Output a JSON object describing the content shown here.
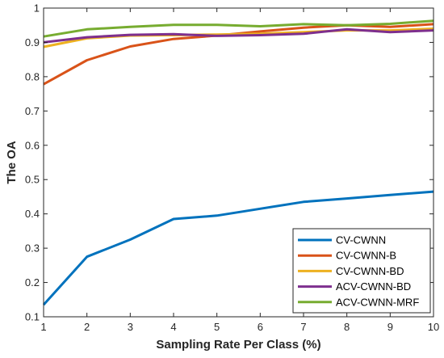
{
  "chart_data": {
    "type": "line",
    "title": "",
    "xlabel": "Sampling Rate Per Class (%)",
    "ylabel": "The OA",
    "x": [
      1,
      2,
      3,
      4,
      5,
      6,
      7,
      8,
      9,
      10
    ],
    "xlim": [
      1,
      10
    ],
    "ylim": [
      0.1,
      1
    ],
    "xticks": [
      1,
      2,
      3,
      4,
      5,
      6,
      7,
      8,
      9,
      10
    ],
    "yticks": [
      0.1,
      0.2,
      0.3,
      0.4,
      0.5,
      0.6,
      0.7,
      0.8,
      0.9,
      1
    ],
    "ytick_labels": [
      "0.1",
      "0.2",
      "0.3",
      "0.4",
      "0.5",
      "0.6",
      "0.7",
      "0.8",
      "0.9",
      "1"
    ],
    "grid": false,
    "legend_position": "bottom-right",
    "series": [
      {
        "name": "CV-CWNN",
        "color": "#0072BD",
        "values": [
          0.135,
          0.275,
          0.325,
          0.385,
          0.395,
          0.415,
          0.435,
          0.445,
          0.455,
          0.465
        ]
      },
      {
        "name": "CV-CWNN-B",
        "color": "#D95319",
        "values": [
          0.778,
          0.848,
          0.888,
          0.91,
          0.92,
          0.932,
          0.943,
          0.95,
          0.945,
          0.953
        ]
      },
      {
        "name": "CV-CWNN-BD",
        "color": "#EDB120",
        "values": [
          0.887,
          0.912,
          0.92,
          0.921,
          0.923,
          0.925,
          0.93,
          0.935,
          0.935,
          0.94
        ]
      },
      {
        "name": "ACV-CWNN-BD",
        "color": "#7E2F8E",
        "values": [
          0.9,
          0.915,
          0.922,
          0.924,
          0.919,
          0.921,
          0.925,
          0.938,
          0.93,
          0.935
        ]
      },
      {
        "name": "ACV-CWNN-MRF",
        "color": "#77AC30",
        "values": [
          0.917,
          0.938,
          0.945,
          0.951,
          0.951,
          0.947,
          0.953,
          0.95,
          0.954,
          0.963
        ]
      }
    ]
  }
}
